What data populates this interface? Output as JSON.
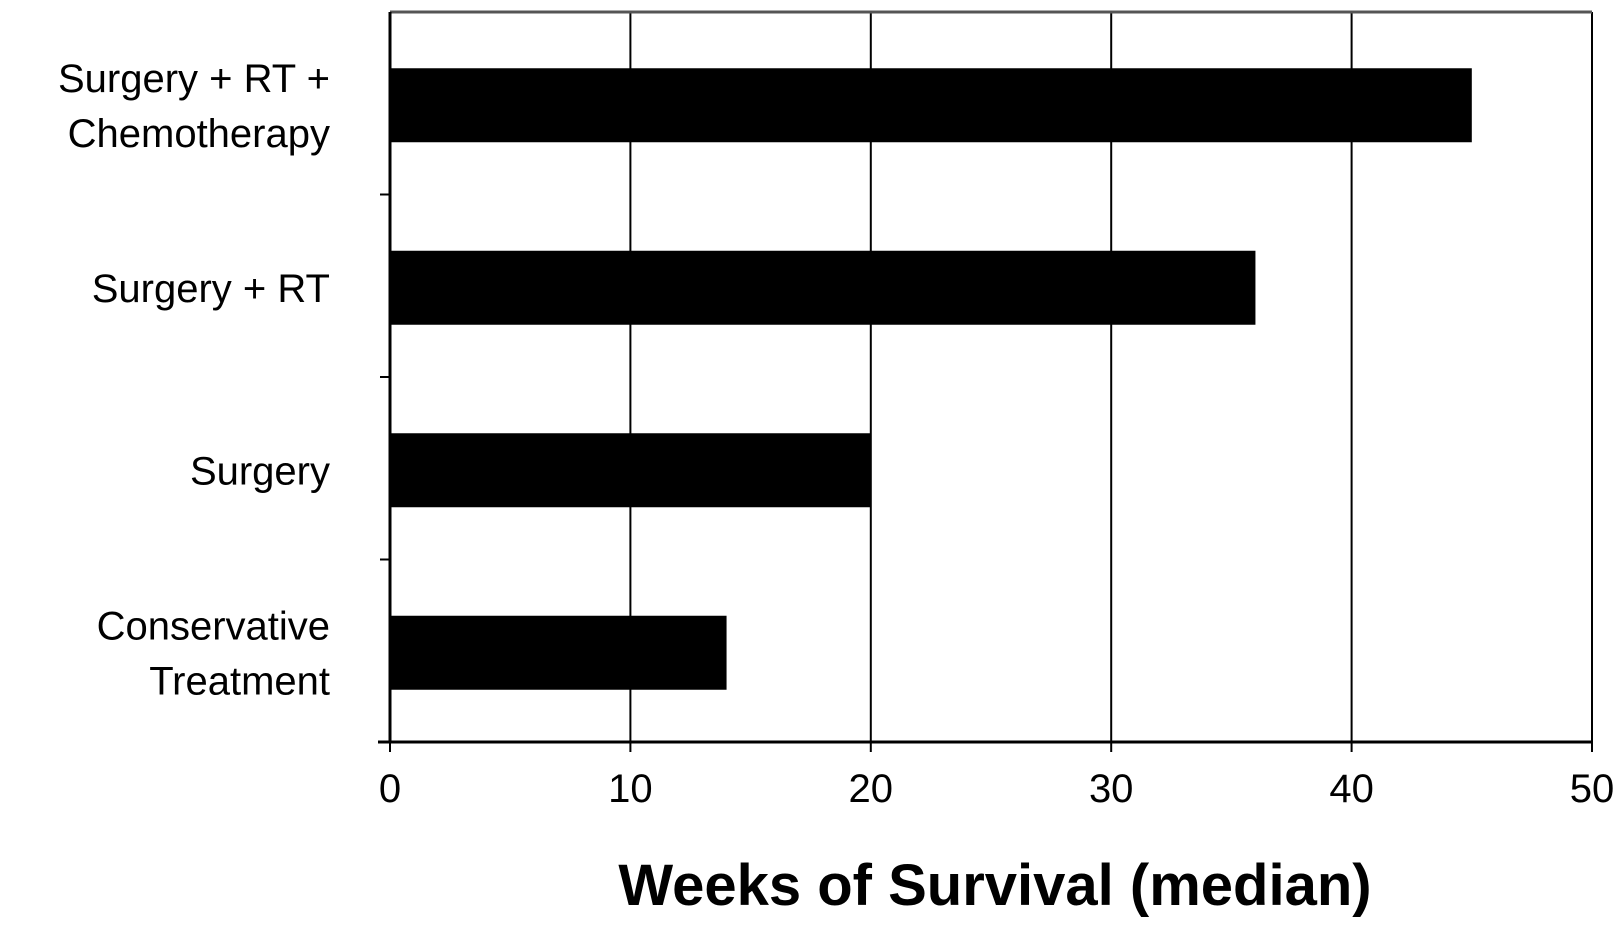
{
  "chart_data": {
    "type": "bar",
    "orientation": "horizontal",
    "title": "",
    "xlabel": "Weeks of Survival (median)",
    "ylabel": "",
    "categories": [
      [
        "Surgery + RT +",
        "Chemotherapy"
      ],
      [
        "Surgery + RT"
      ],
      [
        "Surgery"
      ],
      [
        "Conservative",
        "Treatment"
      ]
    ],
    "values": [
      45,
      36,
      20,
      14
    ],
    "xlim": [
      0,
      50
    ],
    "xticks": [
      "0",
      "10",
      "20",
      "30",
      "40",
      "50"
    ],
    "grid": "vertical",
    "legend": "none",
    "bar_color": "#000000",
    "grid_color": "#000000",
    "frame_color": "#555555"
  }
}
